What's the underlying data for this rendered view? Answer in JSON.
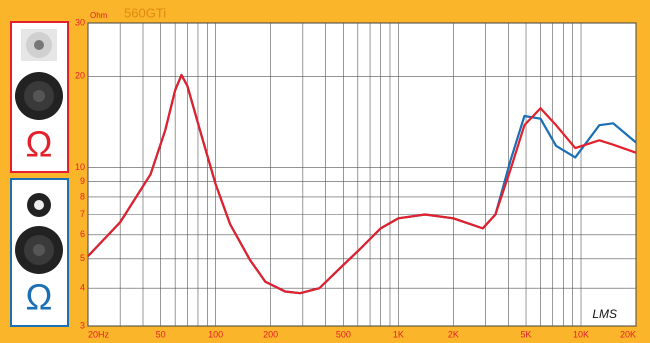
{
  "chart_data": {
    "type": "line",
    "title": "560GTi",
    "y_label": "Ohm",
    "watermark": "LMS",
    "log_x": true,
    "log_y": true,
    "grid": true,
    "x": [
      20,
      30,
      44,
      53,
      60,
      65,
      70,
      82,
      100,
      120,
      154,
      187,
      240,
      290,
      370,
      480,
      620,
      800,
      1000,
      1400,
      2000,
      2900,
      3400,
      4100,
      4900,
      6000,
      7300,
      9300,
      12600,
      15000,
      20000
    ],
    "series": [
      {
        "name": "Ω",
        "color": "#e4202c",
        "values": [
          5.1,
          6.6,
          9.5,
          13.3,
          18,
          20.2,
          18.6,
          13.3,
          8.8,
          6.5,
          4.96,
          4.2,
          3.9,
          3.85,
          4.0,
          4.66,
          5.4,
          6.3,
          6.8,
          7.0,
          6.8,
          6.3,
          7.0,
          9.8,
          13.8,
          15.7,
          13.8,
          11.6,
          12.3,
          11.9,
          11.2
        ]
      },
      {
        "name": "Ω",
        "color": "#1a6fb5",
        "values": [
          5.1,
          6.6,
          9.5,
          13.3,
          18,
          20.2,
          18.6,
          13.3,
          8.8,
          6.5,
          4.96,
          4.2,
          3.9,
          3.85,
          4.0,
          4.66,
          5.4,
          6.3,
          6.8,
          7.0,
          6.8,
          6.3,
          7.0,
          10.5,
          14.8,
          14.5,
          11.8,
          10.8,
          13.8,
          14.0,
          12.1
        ]
      }
    ],
    "xlim": [
      20,
      20000
    ],
    "ylim": [
      3,
      30
    ],
    "xticks": [
      {
        "value": 20,
        "label": "20Hz"
      },
      50,
      100,
      200,
      500,
      {
        "value": 1000,
        "label": "1K"
      },
      {
        "value": 2000,
        "label": "2K"
      },
      {
        "value": 5000,
        "label": "5K"
      },
      {
        "value": 10000,
        "label": "10K"
      },
      {
        "value": 20000,
        "label": "20K"
      }
    ],
    "yticks": [
      3,
      4,
      5,
      6,
      7,
      8,
      9,
      10,
      20,
      30
    ],
    "xgrid": [
      20,
      30,
      40,
      50,
      60,
      70,
      80,
      90,
      100,
      200,
      300,
      400,
      500,
      600,
      700,
      800,
      900,
      1000,
      2000,
      3000,
      4000,
      5000,
      6000,
      7000,
      8000,
      9000,
      10000,
      20000
    ]
  }
}
